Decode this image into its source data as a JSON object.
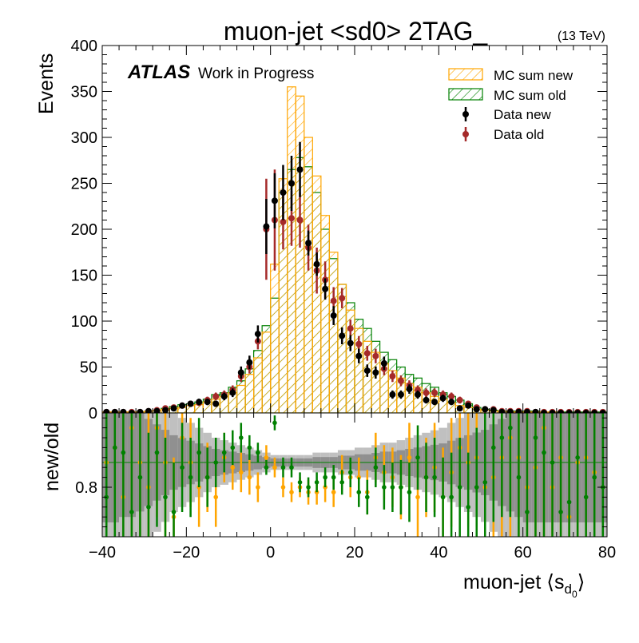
{
  "chart_data": {
    "type": "histogram",
    "title": "muon-jet <sd0> 2TAG_",
    "energy_label": "(13 TeV)",
    "atlas_label": "ATLAS",
    "atlas_sub": "Work in Progress",
    "xlabel_main": "muon-jet ⟨s",
    "xlabel_sub": "d",
    "xlabel_subsub": "0",
    "xlabel_close": "⟩",
    "ylabel_top": "Events",
    "ylabel_bottom": "new/old",
    "xlim": [
      -40,
      80
    ],
    "ylim_top": [
      0,
      400
    ],
    "ylim_bottom": [
      0.7,
      0.95
    ],
    "x_ticks": [
      -40,
      -20,
      0,
      20,
      40,
      60,
      80
    ],
    "x_tick_labels": [
      "−40",
      "−20",
      "0",
      "20",
      "40",
      "60",
      "80"
    ],
    "y_ticks_top": [
      0,
      50,
      100,
      150,
      200,
      250,
      300,
      350,
      400
    ],
    "y_tick_labels_top": [
      "0",
      "50",
      "100",
      "150",
      "200",
      "250",
      "300",
      "350",
      "400"
    ],
    "y_ticks_bottom": [
      0.8
    ],
    "y_tick_labels_bottom": [
      "0.8"
    ],
    "ratio_line": 0.85,
    "legend": [
      {
        "label": "MC sum new",
        "kind": "hatch",
        "color": "#ffa500"
      },
      {
        "label": "MC sum old",
        "kind": "hatch",
        "color": "#008000"
      },
      {
        "label": "Data new",
        "kind": "point",
        "color": "#000000"
      },
      {
        "label": "Data old",
        "kind": "point",
        "color": "#a52a2a"
      }
    ],
    "bin_edges": [
      -40,
      -38,
      -36,
      -34,
      -32,
      -30,
      -28,
      -26,
      -24,
      -22,
      -20,
      -18,
      -16,
      -14,
      -12,
      -10,
      -8,
      -6,
      -4,
      -2,
      0,
      2,
      4,
      6,
      8,
      10,
      12,
      14,
      16,
      18,
      20,
      22,
      24,
      26,
      28,
      30,
      32,
      34,
      36,
      38,
      40,
      42,
      44,
      46,
      48,
      50,
      52,
      54,
      56,
      58,
      60,
      62,
      64,
      66,
      68,
      70,
      72,
      74,
      76,
      78,
      80
    ],
    "series": [
      {
        "name": "MC sum new",
        "color": "#ffa500",
        "values": [
          1,
          1,
          1,
          1,
          1,
          2,
          3,
          4,
          5,
          6,
          8,
          9,
          12,
          15,
          18,
          22,
          30,
          42,
          60,
          88,
          162,
          255,
          355,
          345,
          300,
          258,
          215,
          175,
          140,
          112,
          92,
          78,
          66,
          54,
          46,
          38,
          32,
          28,
          22,
          18,
          15,
          11,
          8,
          6,
          4,
          3,
          2,
          2,
          1,
          1,
          1,
          1,
          1,
          1,
          0,
          0,
          0,
          0,
          0,
          0
        ]
      },
      {
        "name": "MC sum old",
        "color": "#008000",
        "values": [
          1,
          1,
          1,
          1,
          1,
          2,
          3,
          5,
          7,
          9,
          10,
          12,
          15,
          20,
          22,
          28,
          35,
          48,
          68,
          95,
          125,
          240,
          265,
          278,
          268,
          240,
          200,
          168,
          140,
          120,
          102,
          92,
          78,
          66,
          58,
          50,
          42,
          38,
          32,
          28,
          22,
          18,
          14,
          10,
          6,
          4,
          3,
          2,
          2,
          2,
          2,
          2,
          1,
          1,
          1,
          1,
          1,
          1,
          1,
          1
        ]
      },
      {
        "name": "Data new",
        "color": "#000000",
        "x": [
          -39,
          -37,
          -35,
          -33,
          -31,
          -29,
          -27,
          -25,
          -23,
          -21,
          -19,
          -17,
          -15,
          -13,
          -11,
          -9,
          -7,
          -5,
          -3,
          -1,
          1,
          3,
          5,
          7,
          9,
          11,
          13,
          15,
          17,
          19,
          21,
          23,
          25,
          27,
          29,
          31,
          33,
          35,
          37,
          39,
          41,
          43,
          45,
          47,
          49,
          51,
          53,
          55,
          57,
          59,
          61,
          63,
          65,
          67,
          69,
          71,
          73,
          75,
          77,
          79
        ],
        "values": [
          1,
          1,
          1,
          0,
          1,
          2,
          2,
          3,
          5,
          8,
          10,
          12,
          12,
          10,
          18,
          22,
          44,
          55,
          86,
          203,
          231,
          240,
          250,
          265,
          185,
          162,
          135,
          106,
          84,
          76,
          62,
          46,
          44,
          54,
          20,
          20,
          26,
          20,
          14,
          12,
          16,
          12,
          5,
          8,
          4,
          4,
          3,
          1,
          1,
          1,
          1,
          1,
          0,
          0,
          0,
          0,
          0,
          0,
          0,
          0
        ],
        "errors": [
          1,
          1,
          1,
          1,
          1,
          1.4,
          1.4,
          1.7,
          2.2,
          2.8,
          3.2,
          3.5,
          3.5,
          3.2,
          4.2,
          4.7,
          6.6,
          7.4,
          9.3,
          30,
          30,
          30,
          30,
          30,
          13.6,
          12.7,
          11.6,
          10.3,
          9.2,
          8.7,
          7.9,
          6.8,
          6.6,
          7.3,
          4.5,
          4.5,
          5.1,
          4.5,
          3.7,
          3.5,
          4,
          3.5,
          2.2,
          2.8,
          2,
          2,
          1.7,
          1,
          1,
          1,
          1,
          1,
          1,
          1,
          1,
          1,
          1,
          1,
          1,
          1
        ]
      },
      {
        "name": "Data old",
        "color": "#a52a2a",
        "x": [
          -39,
          -37,
          -35,
          -33,
          -31,
          -29,
          -27,
          -25,
          -23,
          -21,
          -19,
          -17,
          -15,
          -13,
          -11,
          -9,
          -7,
          -5,
          -3,
          -1,
          1,
          3,
          5,
          7,
          9,
          11,
          13,
          15,
          17,
          19,
          21,
          23,
          25,
          27,
          29,
          31,
          33,
          35,
          37,
          39,
          41,
          43,
          45,
          47,
          49,
          51,
          53,
          55,
          57,
          59,
          61,
          63,
          65,
          67,
          69,
          71,
          73,
          75,
          77,
          79
        ],
        "values": [
          1,
          1,
          1,
          1,
          1,
          2,
          3,
          5,
          6,
          8,
          10,
          11,
          14,
          18,
          20,
          25,
          40,
          50,
          78,
          200,
          210,
          208,
          212,
          210,
          180,
          155,
          145,
          122,
          125,
          92,
          75,
          65,
          62,
          48,
          40,
          35,
          30,
          25,
          22,
          22,
          20,
          18,
          14,
          10,
          6,
          4,
          4,
          2,
          2,
          2,
          2,
          1,
          1,
          1,
          1,
          1,
          1,
          1,
          1,
          1
        ],
        "errors": [
          1,
          1,
          1,
          1,
          1,
          1.4,
          1.7,
          2.2,
          2.4,
          2.8,
          3.2,
          3.3,
          3.7,
          4.2,
          4.5,
          5,
          6.3,
          7.1,
          8.8,
          55,
          55,
          30,
          30,
          30,
          25,
          25,
          20,
          15,
          11,
          9.6,
          8.7,
          8.1,
          7.9,
          6.9,
          6.3,
          5.9,
          5.5,
          5,
          4.7,
          4.7,
          4.5,
          4.2,
          3.7,
          3.2,
          2.4,
          2,
          2,
          1.4,
          1.4,
          1.4,
          1.4,
          1,
          1,
          1,
          1,
          1,
          1,
          1,
          1,
          1
        ]
      },
      {
        "name": "Ratio MC",
        "color": "#008000",
        "x": [
          -39,
          -37,
          -35,
          -33,
          -31,
          -29,
          -27,
          -25,
          -23,
          -21,
          -19,
          -17,
          -15,
          -13,
          -11,
          -9,
          -7,
          -5,
          -3,
          -1,
          1,
          3,
          5,
          7,
          9,
          11,
          13,
          15,
          17,
          19,
          21,
          23,
          25,
          27,
          29,
          31,
          33,
          35,
          37,
          39,
          41,
          43,
          45,
          47,
          49,
          51,
          53,
          55,
          57,
          59,
          61,
          63,
          65,
          67,
          69,
          71,
          73,
          75,
          77,
          79
        ],
        "values": [
          0.78,
          0.88,
          0.87,
          0.75,
          0.82,
          0.76,
          0.87,
          0.78,
          0.75,
          0.84,
          0.82,
          0.87,
          0.82,
          0.85,
          0.87,
          0.88,
          0.9,
          0.88,
          0.87,
          0.84,
          0.93,
          0.84,
          0.84,
          0.81,
          0.8,
          0.81,
          0.82,
          0.82,
          0.81,
          0.83,
          0.79,
          0.78,
          0.84,
          0.8,
          0.8,
          0.8,
          0.79,
          0.86,
          0.82,
          0.82,
          0.78,
          0.78,
          0.8,
          0.76,
          0.8,
          0.81,
          0.88,
          0.9,
          0.92,
          0.82,
          0.75,
          0.9,
          0.87,
          0.85,
          0.75,
          0.77,
          0.86,
          0.78,
          0.82,
          0.8
        ],
        "errors": [
          0.2,
          0.2,
          0.2,
          0.2,
          0.2,
          0.15,
          0.15,
          0.12,
          0.1,
          0.09,
          0.08,
          0.07,
          0.06,
          0.05,
          0.04,
          0.035,
          0.03,
          0.025,
          0.02,
          0.015,
          0.015,
          0.02,
          0.02,
          0.02,
          0.02,
          0.02,
          0.02,
          0.025,
          0.025,
          0.03,
          0.03,
          0.035,
          0.04,
          0.045,
          0.05,
          0.055,
          0.06,
          0.065,
          0.07,
          0.08,
          0.08,
          0.09,
          0.1,
          0.11,
          0.12,
          0.14,
          0.15,
          0.16,
          0.18,
          0.2,
          0.2,
          0.2,
          0.2,
          0.2,
          0.2,
          0.2,
          0.2,
          0.2,
          0.2,
          0.2
        ]
      },
      {
        "name": "Ratio data",
        "color": "#ffa500",
        "x": [
          -39,
          -37,
          -35,
          -33,
          -31,
          -29,
          -27,
          -25,
          -23,
          -21,
          -19,
          -17,
          -15,
          -13,
          -11,
          -9,
          -7,
          -5,
          -3,
          -1,
          1,
          3,
          5,
          7,
          9,
          11,
          13,
          15,
          17,
          19,
          21,
          23,
          25,
          27,
          29,
          31,
          33,
          35,
          37,
          39,
          41,
          43,
          45,
          47,
          49,
          51,
          53,
          55,
          57,
          59,
          61,
          63,
          65,
          67,
          69,
          71,
          73,
          75,
          77,
          79
        ],
        "values": [
          0.85,
          0.88,
          0.78,
          0.92,
          0.85,
          0.8,
          0.92,
          0.85,
          0.74,
          0.9,
          0.85,
          0.8,
          0.82,
          0.78,
          0.86,
          0.84,
          0.83,
          0.82,
          0.8,
          0.86,
          0.84,
          0.8,
          0.79,
          0.8,
          0.79,
          0.79,
          0.8,
          0.79,
          0.83,
          0.82,
          0.82,
          0.79,
          0.86,
          0.83,
          0.82,
          0.8,
          0.86,
          0.78,
          0.82,
          0.84,
          0.78,
          0.83,
          0.88,
          0.85,
          0.86,
          0.8,
          0.82,
          0.86,
          0.9,
          0.86,
          0.8,
          0.84,
          0.92,
          0.8,
          0.86,
          0.74,
          0.85,
          0.86,
          0.83,
          0.8
        ],
        "errors": [
          0.25,
          0.25,
          0.25,
          0.25,
          0.25,
          0.2,
          0.18,
          0.15,
          0.12,
          0.1,
          0.09,
          0.08,
          0.07,
          0.06,
          0.05,
          0.045,
          0.04,
          0.035,
          0.03,
          0.025,
          0.02,
          0.02,
          0.02,
          0.02,
          0.025,
          0.025,
          0.03,
          0.03,
          0.035,
          0.04,
          0.04,
          0.045,
          0.05,
          0.055,
          0.06,
          0.065,
          0.07,
          0.08,
          0.08,
          0.09,
          0.1,
          0.11,
          0.12,
          0.13,
          0.14,
          0.16,
          0.18,
          0.2,
          0.2,
          0.22,
          0.22,
          0.22,
          0.22,
          0.22,
          0.22,
          0.22,
          0.22,
          0.22,
          0.22,
          0.22
        ]
      },
      {
        "name": "Ratio band",
        "color": "#808080",
        "values": [
          0.22,
          0.22,
          0.2,
          0.2,
          0.18,
          0.16,
          0.14,
          0.12,
          0.1,
          0.09,
          0.08,
          0.07,
          0.06,
          0.05,
          0.045,
          0.04,
          0.035,
          0.03,
          0.025,
          0.02,
          0.015,
          0.015,
          0.015,
          0.015,
          0.015,
          0.02,
          0.02,
          0.02,
          0.025,
          0.025,
          0.03,
          0.03,
          0.035,
          0.04,
          0.04,
          0.045,
          0.05,
          0.055,
          0.06,
          0.065,
          0.07,
          0.08,
          0.09,
          0.1,
          0.11,
          0.12,
          0.14,
          0.16,
          0.18,
          0.2,
          0.22,
          0.22,
          0.22,
          0.22,
          0.22,
          0.22,
          0.22,
          0.22,
          0.22,
          0.22
        ]
      }
    ]
  }
}
